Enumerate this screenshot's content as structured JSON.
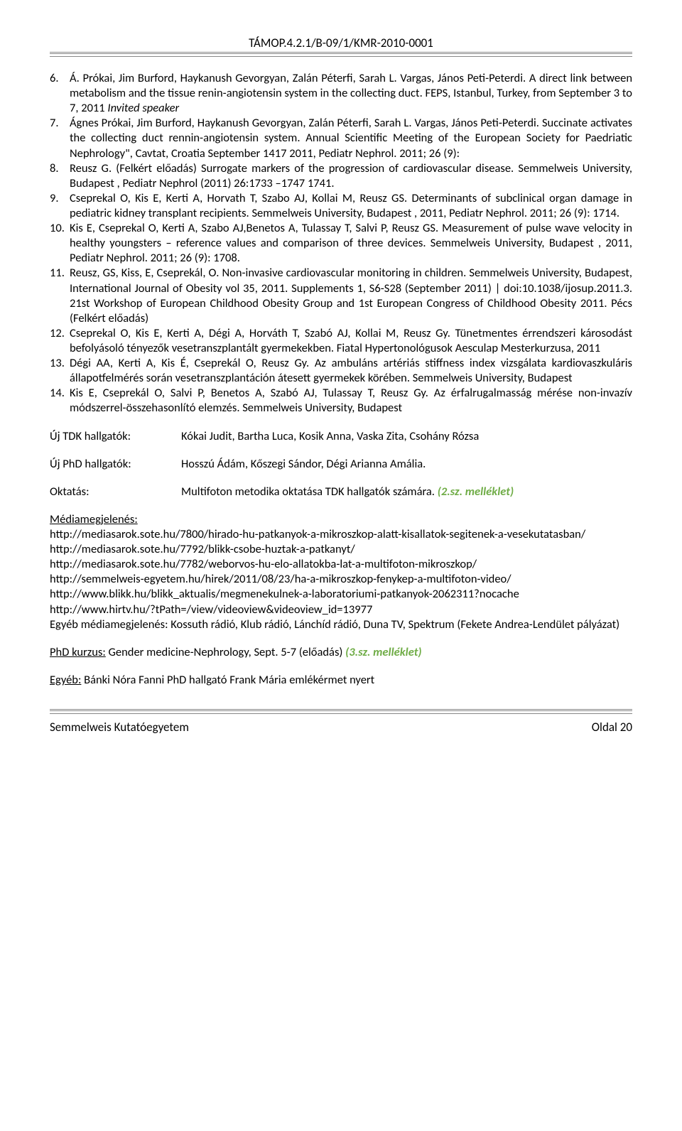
{
  "header": "TÁMOP.4.2.1/B-09/1/KMR-2010-0001",
  "items": [
    {
      "n": "6.",
      "text": "Á. Prókai, Jim Burford, Haykanush Gevorgyan, Zalán Péterfi, Sarah L. Vargas, János Peti-Peterdi. A direct link between metabolism and the tissue renin-angiotensin system in the collecting duct. FEPS, Istanbul, Turkey, from  September 3 to 7, 2011 ",
      "ital": "Invited speaker"
    },
    {
      "n": "7.",
      "text": "Ágnes Prókai, Jim Burford, Haykanush Gevorgyan, Zalán Péterfi, Sarah L. Vargas, János Peti-Peterdi. Succinate activates the collecting duct rennin-angiotensin system. Annual Scientific Meeting of the European Society for Paedriatic Nephrology\", Cavtat, Croatia September 1417 2011, Pediatr Nephrol. 2011; 26 (9):"
    },
    {
      "n": "8.",
      "text": "Reusz G. (Felkért előadás) Surrogate markers of the progression of cardiovascular disease. Semmelweis University, Budapest , Pediatr Nephrol (2011) 26:1733 –1747 1741."
    },
    {
      "n": "9.",
      "text": "Cseprekal O, Kis E, Kerti A, Horvath T, Szabo AJ, Kollai M, Reusz GS. Determinants of subclinical organ damage in pediatric kidney transplant recipients. Semmelweis University, Budapest , 2011, Pediatr Nephrol. 2011; 26 (9): 1714."
    },
    {
      "n": "10.",
      "text": "Kis E, Cseprekal O, Kerti A, Szabo AJ,Benetos A, Tulassay T, Salvi P, Reusz GS. Measurement of pulse wave velocity in healthy youngsters – reference values and comparison of three devices. Semmelweis University, Budapest , 2011, Pediatr Nephrol. 2011; 26 (9): 1708."
    },
    {
      "n": "11.",
      "text": "Reusz, GS, Kiss, E, Cseprekál, O. Non-invasive cardiovascular monitoring in children. Semmelweis University, Budapest, International Journal of Obesity vol 35, 2011. Supplements 1, S6-S28 (September 2011) | doi:10.1038/ijosup.2011.3. 21st Workshop of European Childhood Obesity Group and 1st European Congress of Childhood Obesity 2011. Pécs (Felkért előadás)"
    },
    {
      "n": "12.",
      "text": "Cseprekal O, Kis E, Kerti A, Dégi A, Horváth T, Szabó AJ, Kollai M, Reusz Gy. Tünetmentes érrendszeri károsodást befolyásoló tényezők vesetranszplantált gyermekekben. Fiatal Hypertonológusok Aesculap Mesterkurzusa, 2011"
    },
    {
      "n": "13.",
      "text": "Dégi AA, Kerti A, Kis É, Cseprekál O, Reusz Gy. Az ambuláns artériás stiffness index vizsgálata kardiovaszkuláris állapotfelmérés során vesetranszplantáción átesett gyermekek körében. Semmelweis University, Budapest"
    },
    {
      "n": "14.",
      "text": "Kis E, Cseprekál O, Salvi P, Benetos A, Szabó AJ, Tulassay T, Reusz Gy. Az érfalrugalmasság mérése non-invazív módszerrel-összehasonlító elemzés. Semmelweis University, Budapest"
    }
  ],
  "rows": {
    "tdk_label": "Új TDK hallgatók:",
    "tdk_value": "Kókai Judit, Bartha Luca, Kosik Anna, Vaska Zita, Csohány Rózsa",
    "phd_label": "Új PhD hallgatók:",
    "phd_value": "Hosszú Ádám, Kőszegi Sándor, Dégi Arianna Amália.",
    "okt_label": "Oktatás:",
    "okt_value": "Multifoton metodika oktatása TDK hallgatók számára. ",
    "okt_green": "(2.sz. melléklet)"
  },
  "media": {
    "title": "Médiamegjelenés:",
    "l1": "http://mediasarok.sote.hu/7800/hirado-hu-patkanyok-a-mikroszkop-alatt-kisallatok-segitenek-a-vesekutatasban/",
    "l2": "http://mediasarok.sote.hu/7792/blikk-csobe-huztak-a-patkanyt/",
    "l3": "http://mediasarok.sote.hu/7782/weborvos-hu-elo-allatokba-lat-a-multifoton-mikroszkop/",
    "l4": "http://semmelweis-egyetem.hu/hirek/2011/08/23/ha-a-mikroszkop-fenykep-a-multifoton-video/",
    "l5": "http://www.blikk.hu/blikk_aktualis/megmenekulnek-a-laboratoriumi-patkanyok-2062311?nocache",
    "l6": "http://www.hirtv.hu/?tPath=/view/videoview&videoview_id=13977",
    "l7": "Egyéb médiamegjelenés: Kossuth rádió, Klub rádió, Lánchíd rádió, Duna TV, Spektrum (Fekete Andrea-Lendület pályázat)"
  },
  "phd_course": {
    "label": "PhD kurzus:",
    "text": " Gender medicine-Nephrology, Sept. 5-7 (előadás) ",
    "green": "(3.sz. melléklet)"
  },
  "egyeb": {
    "label": "Egyéb:",
    "text": " Bánki Nóra Fanni PhD hallgató Frank Mária emlékérmet nyert"
  },
  "footer": {
    "left": "Semmelweis Kutatóegyetem",
    "right": "Oldal 20"
  }
}
